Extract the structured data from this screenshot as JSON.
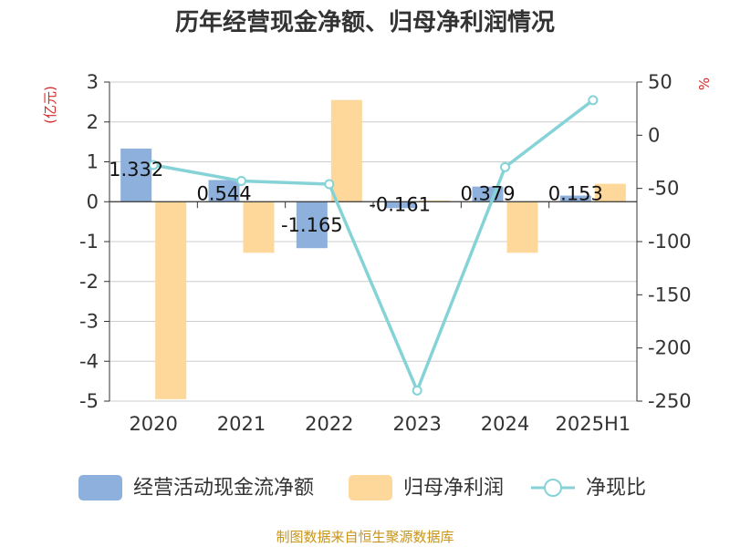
{
  "title": "历年经营现金净额、归母净利润情况",
  "source": "制图数据来自恒生聚源数据库",
  "colors": {
    "cash_flow": "#8eb0dc",
    "net_profit": "#fdd89a",
    "ratio": "#86d3d7",
    "grid": "#cccccc",
    "axis": "#333333",
    "unit": "#d42a2a",
    "source": "#c8941a"
  },
  "chart_data": {
    "type": "bar",
    "categories": [
      "2020",
      "2021",
      "2022",
      "2023",
      "2024",
      "2025H1"
    ],
    "series": [
      {
        "name": "经营活动现金流净额",
        "type": "bar",
        "axis": "left",
        "values": [
          1.332,
          0.544,
          -1.165,
          -0.161,
          0.379,
          0.153
        ],
        "labels": [
          "1.332",
          "0.544",
          "-1.165",
          "-0.161",
          "0.379",
          "0.153"
        ]
      },
      {
        "name": "归母净利润",
        "type": "bar",
        "axis": "left",
        "values": [
          -4.95,
          -1.28,
          2.55,
          0.03,
          -1.28,
          0.45
        ]
      },
      {
        "name": "净现比",
        "type": "line",
        "axis": "right",
        "values": [
          -28,
          -43,
          -46,
          -240,
          -30,
          33
        ]
      }
    ],
    "y_left": {
      "label": "(亿元)",
      "min": -5,
      "max": 3,
      "ticks": [
        3,
        2,
        1,
        0,
        -1,
        -2,
        -3,
        -4,
        -5
      ]
    },
    "y_right": {
      "label": "%",
      "min": -250,
      "max": 50,
      "ticks": [
        50,
        0,
        -50,
        -100,
        -150,
        -200,
        -250
      ]
    },
    "grid": true,
    "legend_position": "bottom"
  }
}
